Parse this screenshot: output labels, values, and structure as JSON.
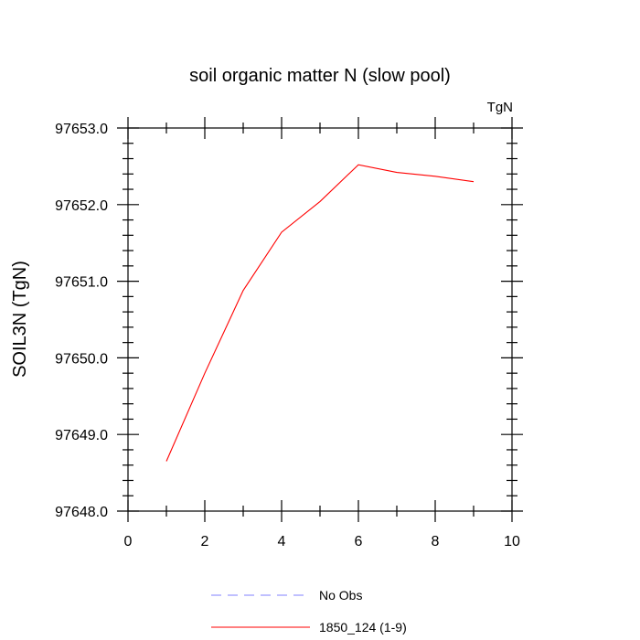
{
  "chart_data": {
    "type": "line",
    "title": "soil organic matter N (slow pool)",
    "units_label": "TgN",
    "ylabel": "SOIL3N  (TgN)",
    "xlabel": "",
    "xlim": [
      0,
      10
    ],
    "ylim": [
      97648.0,
      97653.0
    ],
    "x_ticks": [
      0,
      2,
      4,
      6,
      8,
      10
    ],
    "x_tick_labels": [
      "0",
      "2",
      "4",
      "6",
      "8",
      "10"
    ],
    "y_ticks": [
      97648.0,
      97649.0,
      97650.0,
      97651.0,
      97652.0,
      97653.0
    ],
    "y_tick_labels": [
      "97648.0",
      "97649.0",
      "97650.0",
      "97651.0",
      "97652.0",
      "97653.0"
    ],
    "grid": false,
    "series": [
      {
        "name": "1850_124 (1-9)",
        "color": "#ff0000",
        "dash": "solid",
        "x": [
          1,
          2,
          3,
          4,
          5,
          6,
          7,
          8,
          9
        ],
        "values": [
          97648.65,
          97649.8,
          97650.88,
          97651.64,
          97652.04,
          97652.52,
          97652.42,
          97652.37,
          97652.3
        ]
      }
    ],
    "legend": [
      {
        "label": "No Obs",
        "color": "#8080ff",
        "dash": "dashed"
      },
      {
        "label": "1850_124 (1-9)",
        "color": "#ff0000",
        "dash": "solid"
      }
    ],
    "legend_position": "bottom-center"
  }
}
